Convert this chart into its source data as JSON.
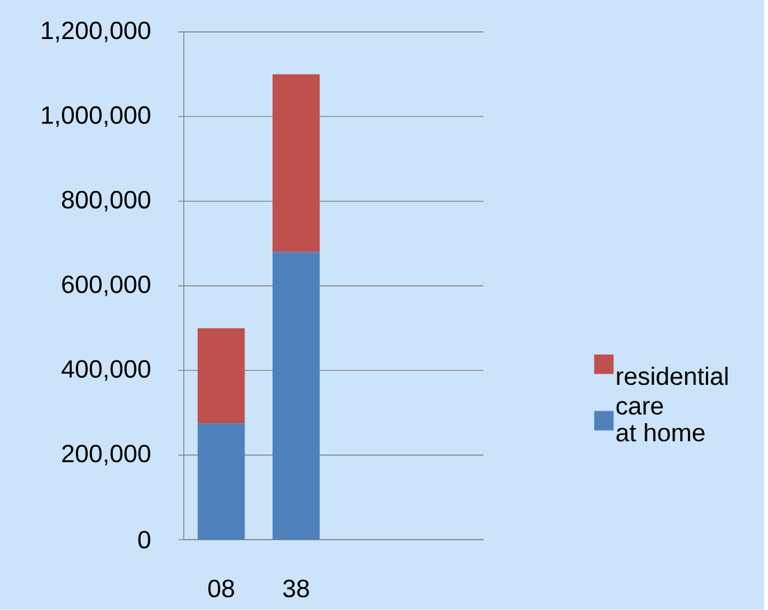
{
  "chart_data": {
    "type": "bar",
    "stacked": true,
    "categories": [
      "08",
      "38",
      null,
      null
    ],
    "series": [
      {
        "name": "at home",
        "color": "#4f81bd",
        "values": [
          275000,
          680000,
          null,
          null
        ]
      },
      {
        "name": "residential care",
        "color": "#c0504d",
        "values": [
          225000,
          420000,
          null,
          null
        ]
      }
    ],
    "ylim": [
      0,
      1200000
    ],
    "yticks": [
      0,
      {
        "value": 200000,
        "label": "200,000"
      },
      {
        "value": 400000,
        "label": "400,000"
      },
      {
        "value": 600000,
        "label": "600,000"
      },
      {
        "value": 800000,
        "label": "800,000"
      },
      {
        "value": 1000000,
        "label": "1,000,000"
      },
      {
        "value": 1200000,
        "label": "1,200,000"
      }
    ],
    "grid": "y",
    "legend": "right"
  }
}
